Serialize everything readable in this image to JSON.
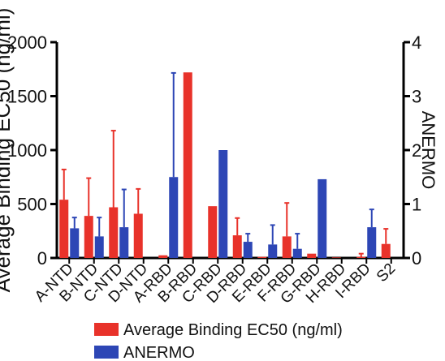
{
  "chart_data": {
    "type": "bar",
    "title": "",
    "categories": [
      "A-NTD",
      "B-NTD",
      "C-NTD",
      "D-NTD",
      "A-RBD",
      "B-RBD",
      "C-RBD",
      "D-RBD",
      "E-RBD",
      "F-RBD",
      "G-RBD",
      "H-RBD",
      "I-RBD",
      "S2"
    ],
    "ylabel_left": "Average Binding EC50 (ng/ml)",
    "ylabel_right": "ANERMO",
    "ylim_left": [
      0,
      2000
    ],
    "ylim_right": [
      0,
      4
    ],
    "yticks_left": [
      "0",
      "500",
      "1000",
      "1500",
      "2000"
    ],
    "yticks_right": [
      "0",
      "1",
      "2",
      "3",
      "4"
    ],
    "series": [
      {
        "name": "Average Binding EC50 (ng/ml)",
        "axis": "left",
        "color": "#e8322a",
        "values": [
          540,
          390,
          470,
          410,
          25,
          1720,
          480,
          210,
          10,
          200,
          40,
          5,
          10,
          130
        ],
        "error": [
          280,
          350,
          710,
          230,
          0,
          0,
          0,
          160,
          0,
          310,
          0,
          0,
          30,
          140
        ]
      },
      {
        "name": "ANERMO",
        "axis": "right",
        "color": "#2d46b5",
        "values": [
          0.55,
          0.4,
          0.57,
          null,
          1.5,
          null,
          2.0,
          0.3,
          0.25,
          0.17,
          1.46,
          null,
          0.57,
          null
        ],
        "error": [
          0.2,
          0.35,
          0.7,
          0,
          1.93,
          0,
          0,
          0.15,
          0.36,
          0.28,
          0,
          0,
          0.33,
          0
        ]
      }
    ],
    "legend": {
      "position": "bottom",
      "items": [
        "Average Binding EC50 (ng/ml)",
        "ANERMO"
      ]
    },
    "grid": false
  }
}
